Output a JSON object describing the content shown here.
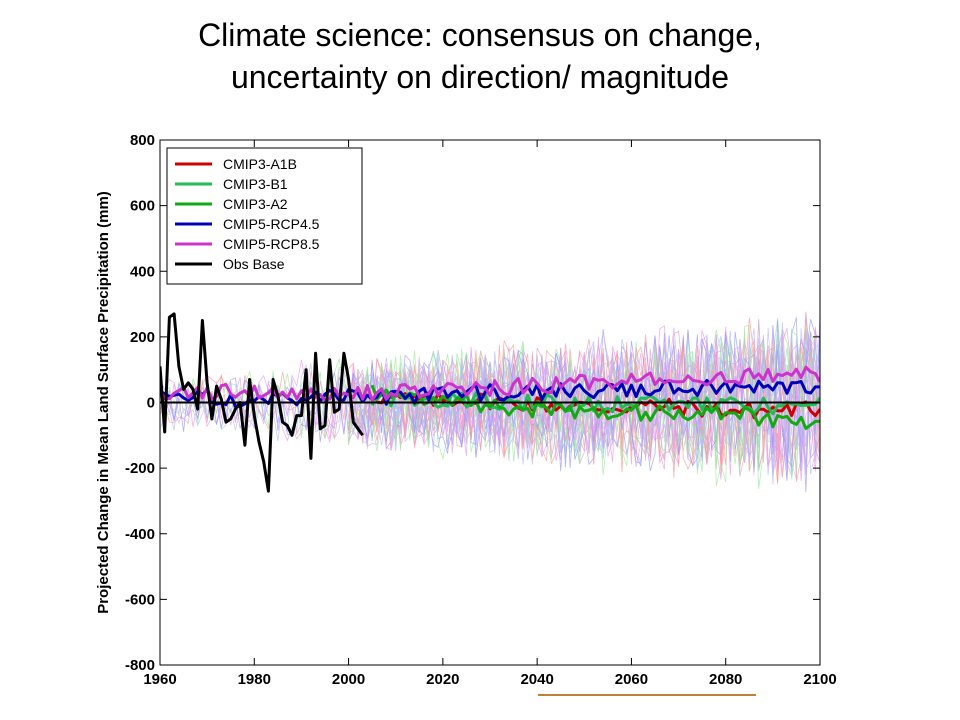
{
  "slide": {
    "title_line1": "Climate science: consensus on change,",
    "title_line2": "uncertainty on direction/ magnitude"
  },
  "chart_data": {
    "type": "line",
    "xlabel": "",
    "ylabel": "Projected Change in Mean Land Surface Precipitation (mm)",
    "xlim": [
      1960,
      2100
    ],
    "ylim": [
      -800,
      800
    ],
    "xticks": [
      1960,
      1980,
      2000,
      2020,
      2040,
      2060,
      2080,
      2100
    ],
    "yticks": [
      800,
      600,
      400,
      200,
      0,
      -200,
      -400,
      -600,
      -800
    ],
    "grid": false,
    "legend_position": "top-left",
    "series": [
      {
        "name": "CMIP3-A1B",
        "color": "#cc0000",
        "x": [
          2005,
          2015,
          2025,
          2035,
          2045,
          2055,
          2065,
          2075,
          2085,
          2095,
          2100
        ],
        "values": [
          20,
          5,
          10,
          0,
          -10,
          -15,
          -10,
          -20,
          -25,
          -20,
          -20
        ]
      },
      {
        "name": "CMIP3-B1",
        "color": "#22bb55",
        "x": [
          2005,
          2015,
          2025,
          2035,
          2045,
          2055,
          2065,
          2075,
          2085,
          2095,
          2100
        ],
        "values": [
          10,
          10,
          5,
          0,
          0,
          -5,
          0,
          -5,
          -10,
          -15,
          -10
        ]
      },
      {
        "name": "CMIP3-A2",
        "color": "#11aa11",
        "x": [
          2005,
          2015,
          2025,
          2035,
          2045,
          2055,
          2065,
          2075,
          2085,
          2095,
          2100
        ],
        "values": [
          30,
          20,
          0,
          -20,
          -20,
          -30,
          -30,
          -30,
          -40,
          -60,
          -60
        ]
      },
      {
        "name": "CMIP5-RCP4.5",
        "color": "#0000bb",
        "x": [
          1960,
          1980,
          2000,
          2010,
          2020,
          2030,
          2040,
          2050,
          2060,
          2070,
          2080,
          2090,
          2100
        ],
        "values": [
          20,
          10,
          15,
          20,
          25,
          30,
          30,
          35,
          40,
          40,
          45,
          45,
          50
        ]
      },
      {
        "name": "CMIP5-RCP8.5",
        "color": "#cc33cc",
        "x": [
          1960,
          1980,
          2000,
          2010,
          2020,
          2030,
          2040,
          2050,
          2060,
          2070,
          2080,
          2090,
          2100
        ],
        "values": [
          30,
          30,
          25,
          30,
          40,
          45,
          50,
          60,
          65,
          70,
          75,
          80,
          85
        ]
      },
      {
        "name": "Obs Base",
        "color": "#000000",
        "x": [
          1960,
          1961,
          1962,
          1963,
          1964,
          1965,
          1966,
          1967,
          1968,
          1969,
          1970,
          1971,
          1972,
          1973,
          1974,
          1975,
          1976,
          1977,
          1978,
          1979,
          1980,
          1981,
          1982,
          1983,
          1984,
          1985,
          1986,
          1987,
          1988,
          1989,
          1990,
          1991,
          1992,
          1993,
          1994,
          1995,
          1996,
          1997,
          1998,
          1999,
          2000,
          2001,
          2002,
          2003
        ],
        "values": [
          110,
          -90,
          260,
          270,
          110,
          40,
          60,
          40,
          -20,
          250,
          60,
          -50,
          50,
          10,
          -60,
          -50,
          -20,
          0,
          -130,
          70,
          -40,
          -120,
          -180,
          -270,
          70,
          20,
          -60,
          -70,
          -100,
          -40,
          -40,
          100,
          -170,
          150,
          -80,
          -70,
          130,
          -30,
          -20,
          150,
          70,
          -60,
          -80,
          -100
        ]
      }
    ],
    "reference_line": {
      "y": 0,
      "color": "#000000"
    },
    "ensemble_spread_colors": [
      "#ff9999",
      "#99ee99",
      "#9999ff",
      "#ee99ee",
      "#bbbbff"
    ]
  }
}
